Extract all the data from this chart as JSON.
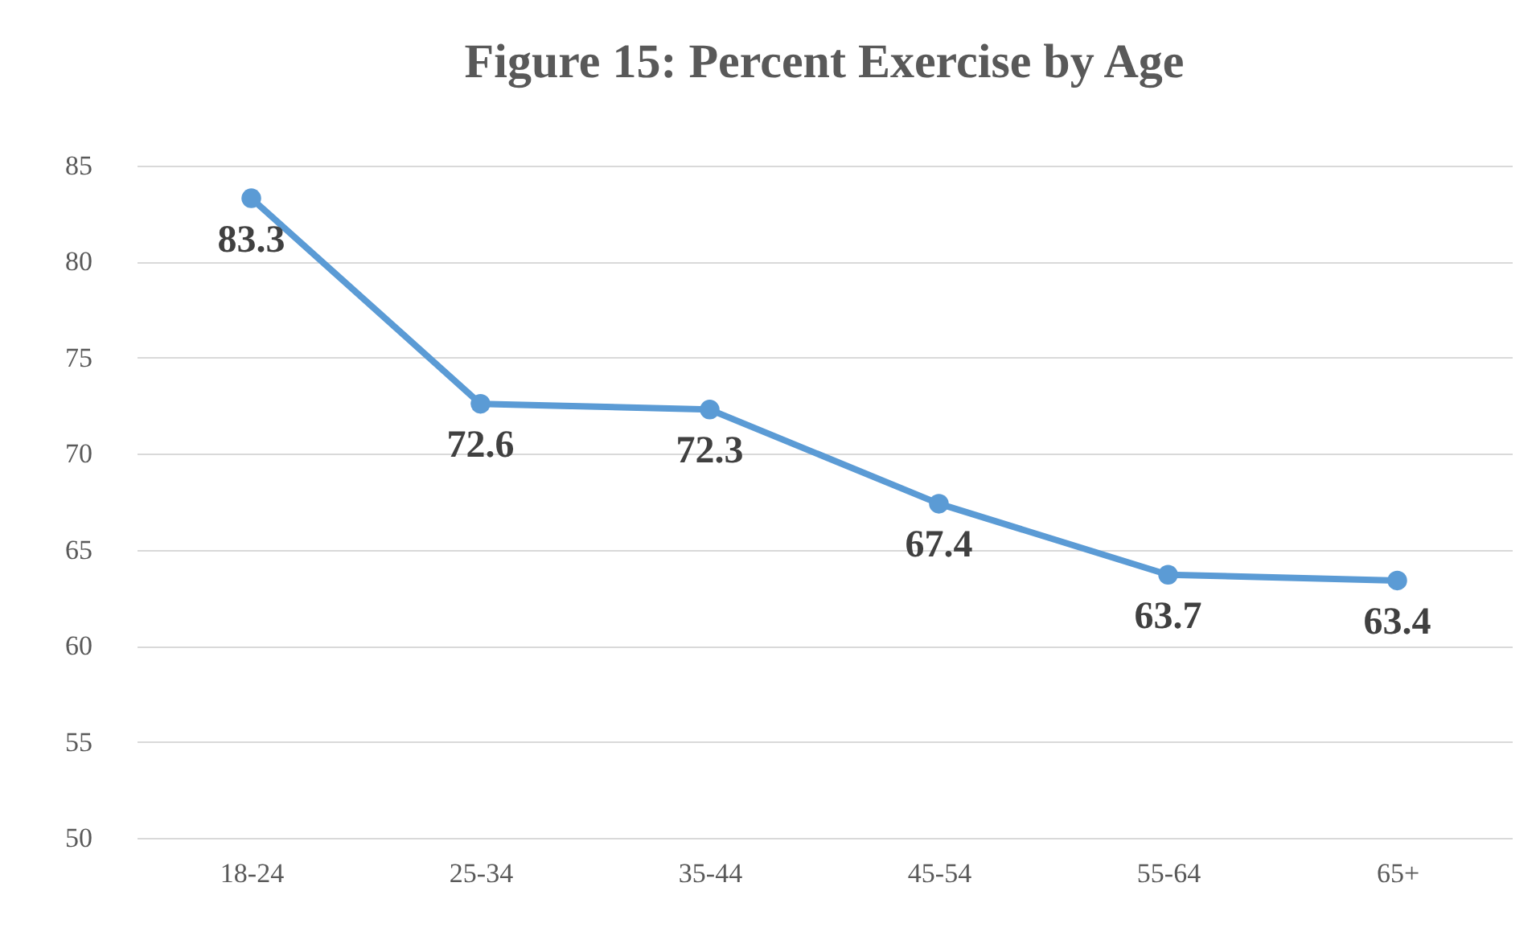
{
  "chart_data": {
    "type": "line",
    "title": "Figure 15: Percent Exercise by Age",
    "categories": [
      "18-24",
      "25-34",
      "35-44",
      "45-54",
      "55-64",
      "65+"
    ],
    "series": [
      {
        "color": "#5b9bd5",
        "values": [
          83.3,
          72.6,
          72.3,
          67.4,
          63.7,
          63.4
        ]
      }
    ],
    "ylim": [
      50,
      85
    ],
    "yticks": [
      50,
      55,
      60,
      65,
      70,
      75,
      80,
      85
    ],
    "grid": "y",
    "marker": "circle",
    "line_style": "solid",
    "data_labels": true
  }
}
